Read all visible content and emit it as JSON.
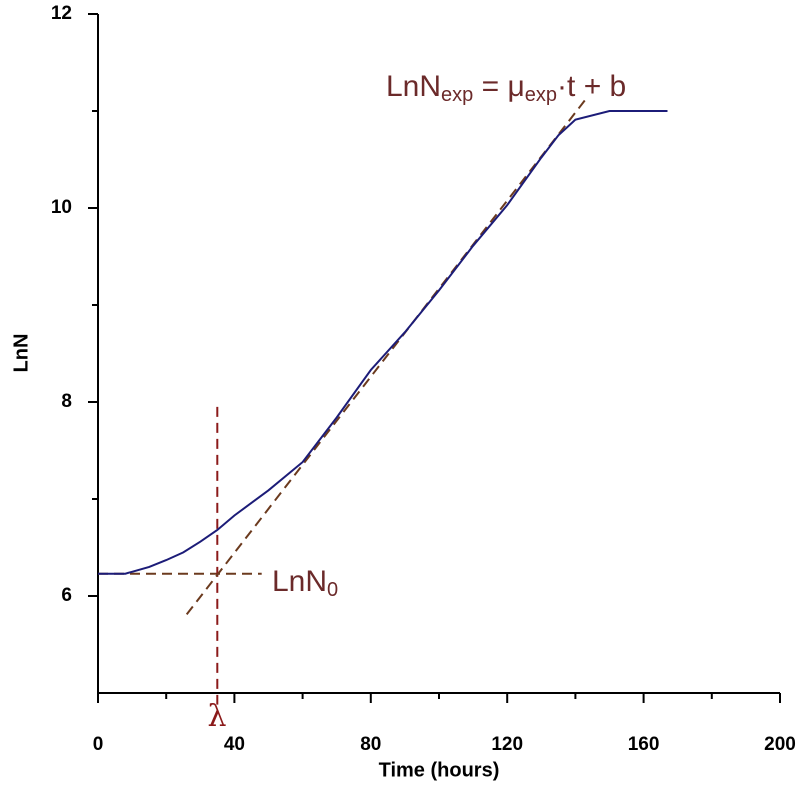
{
  "chart_data": {
    "type": "line",
    "xlabel": "Time (hours)",
    "ylabel": "LnN",
    "x": [
      0,
      8,
      10,
      15,
      20,
      25,
      30,
      35,
      40,
      50,
      60,
      70,
      80,
      90,
      100,
      110,
      120,
      130,
      135,
      140,
      150,
      167
    ],
    "values": [
      6.23,
      6.23,
      6.25,
      6.3,
      6.37,
      6.45,
      6.56,
      6.68,
      6.83,
      7.09,
      7.38,
      7.84,
      8.33,
      8.72,
      9.15,
      9.61,
      10.03,
      10.52,
      10.75,
      10.91,
      11.0,
      11.0
    ],
    "color": "#1c1c78",
    "xlim": [
      0,
      200
    ],
    "xticks": [
      0,
      40,
      80,
      120,
      160,
      200
    ],
    "xminor": [
      20,
      60,
      100,
      140,
      180
    ],
    "ylim": [
      5,
      12
    ],
    "yticks": [
      6,
      8,
      10,
      12
    ],
    "yminor": [
      7,
      9,
      11
    ],
    "tangent_line": {
      "x": [
        26,
        143
      ],
      "values": [
        5.81,
        11.12
      ],
      "color": "#6b3a1e"
    },
    "n0_line": {
      "x": [
        0,
        48
      ],
      "values": [
        6.23,
        6.23
      ],
      "color": "#6b3a1e"
    },
    "lambda_line": {
      "x": [
        35,
        35
      ],
      "values": [
        7.95,
        4.88
      ],
      "color": "#8b1a1a"
    },
    "lambda_label": "λ",
    "n0_label": [
      "LnN",
      "0"
    ],
    "equation": [
      "LnN",
      "exp",
      " = μ",
      "exp",
      "·t + b"
    ]
  }
}
